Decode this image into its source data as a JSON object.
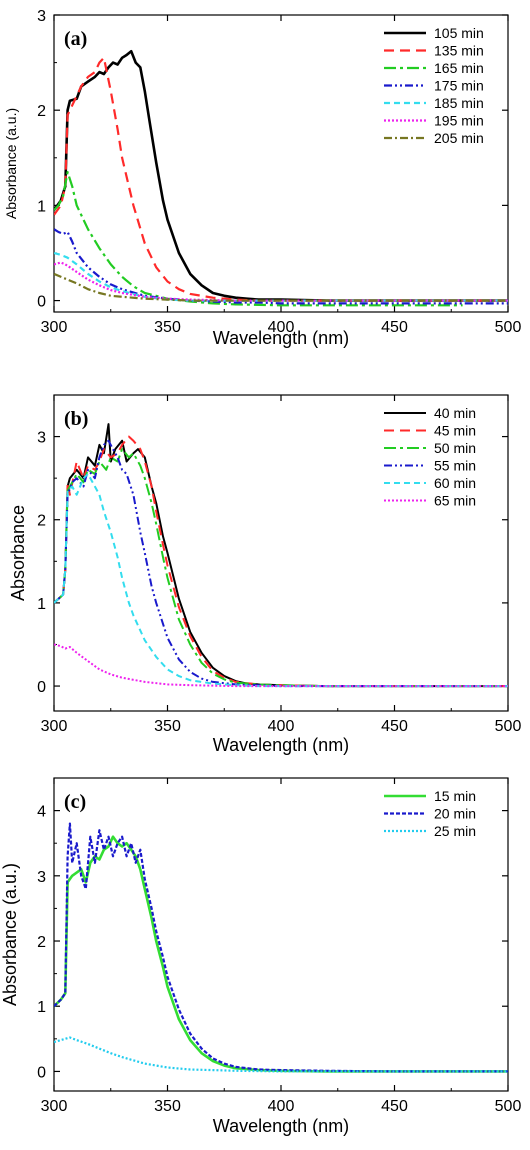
{
  "chart_data": [
    {
      "type": "line",
      "panel_label": "(a)",
      "xlabel": "Wavelength (nm)",
      "ylabel": "Absorbance (a.u.)",
      "xlim": [
        300,
        500
      ],
      "ylim": [
        -0.12,
        3
      ],
      "xticks": [
        300,
        350,
        400,
        450,
        500
      ],
      "yticks": [
        0,
        1,
        2,
        3
      ],
      "legend": "top-right",
      "series": [
        {
          "name": "105 min",
          "color": "#000000",
          "dash": "solid",
          "width": 2.6,
          "x": [
            300,
            303,
            305,
            306,
            307,
            310,
            312,
            315,
            318,
            320,
            322,
            324,
            326,
            328,
            330,
            332,
            334,
            336,
            338,
            340,
            342,
            345,
            348,
            350,
            355,
            360,
            365,
            370,
            375,
            380,
            385,
            390,
            400,
            420,
            450,
            480,
            500
          ],
          "y": [
            0.95,
            1.05,
            1.2,
            2.0,
            2.1,
            2.12,
            2.25,
            2.3,
            2.35,
            2.4,
            2.38,
            2.45,
            2.5,
            2.48,
            2.55,
            2.58,
            2.62,
            2.5,
            2.45,
            2.2,
            1.9,
            1.45,
            1.05,
            0.85,
            0.5,
            0.28,
            0.16,
            0.08,
            0.05,
            0.03,
            0.02,
            0.01,
            0.01,
            0.0,
            0.0,
            0.0,
            0.0
          ]
        },
        {
          "name": "135 min",
          "color": "#ff2a2a",
          "dash": "10,6",
          "width": 2.2,
          "x": [
            300,
            303,
            305,
            306,
            308,
            310,
            312,
            315,
            318,
            320,
            322,
            325,
            328,
            330,
            335,
            340,
            345,
            350,
            355,
            360,
            370,
            380,
            390,
            400,
            450,
            500
          ],
          "y": [
            0.9,
            1.0,
            1.2,
            1.95,
            2.05,
            2.15,
            2.25,
            2.35,
            2.4,
            2.5,
            2.55,
            2.2,
            1.8,
            1.5,
            1.0,
            0.6,
            0.35,
            0.2,
            0.12,
            0.07,
            0.03,
            0.01,
            0.0,
            0.0,
            0.0,
            0.0
          ]
        },
        {
          "name": "165 min",
          "color": "#22cc22",
          "dash": "12,4,3,4",
          "width": 2.2,
          "x": [
            300,
            302,
            304,
            306,
            308,
            310,
            315,
            320,
            325,
            330,
            335,
            340,
            350,
            360,
            370,
            380,
            400,
            420,
            450,
            480
          ],
          "y": [
            0.95,
            1.0,
            1.1,
            1.35,
            1.2,
            1.0,
            0.75,
            0.55,
            0.38,
            0.25,
            0.15,
            0.08,
            0.02,
            -0.01,
            -0.03,
            -0.04,
            -0.05,
            -0.05,
            -0.05,
            -0.05
          ]
        },
        {
          "name": "175 min",
          "color": "#1a1acc",
          "dash": "8,3,2,3,2,3",
          "width": 2.2,
          "x": [
            300,
            302,
            304,
            306,
            308,
            310,
            315,
            320,
            325,
            330,
            340,
            350,
            360,
            370,
            380,
            390,
            400,
            420,
            450,
            480,
            500
          ],
          "y": [
            0.75,
            0.72,
            0.7,
            0.72,
            0.62,
            0.5,
            0.35,
            0.25,
            0.17,
            0.12,
            0.05,
            0.02,
            0.0,
            -0.01,
            -0.02,
            -0.02,
            -0.03,
            -0.03,
            -0.03,
            -0.03,
            -0.03
          ]
        },
        {
          "name": "185 min",
          "color": "#33ddee",
          "dash": "6,4",
          "width": 2.2,
          "x": [
            300,
            303,
            306,
            310,
            315,
            320,
            325,
            330,
            340,
            350,
            360,
            380,
            400,
            450,
            500
          ],
          "y": [
            0.5,
            0.48,
            0.45,
            0.38,
            0.28,
            0.2,
            0.14,
            0.1,
            0.04,
            0.01,
            0.0,
            0.0,
            0.0,
            0.0,
            0.0
          ]
        },
        {
          "name": "195 min",
          "color": "#ee22ee",
          "dash": "2,2",
          "width": 2.2,
          "x": [
            300,
            303,
            305,
            307,
            310,
            315,
            320,
            325,
            330,
            340,
            350,
            360,
            380,
            400,
            450,
            500
          ],
          "y": [
            0.38,
            0.4,
            0.38,
            0.35,
            0.3,
            0.22,
            0.16,
            0.11,
            0.08,
            0.04,
            0.02,
            0.01,
            0.0,
            0.0,
            0.0,
            0.0
          ]
        },
        {
          "name": "205 min",
          "color": "#777722",
          "dash": "8,3,2,3",
          "width": 2.2,
          "x": [
            300,
            303,
            306,
            310,
            315,
            320,
            325,
            330,
            340,
            350,
            360,
            380,
            400,
            450,
            500
          ],
          "y": [
            0.28,
            0.25,
            0.22,
            0.18,
            0.12,
            0.08,
            0.05,
            0.04,
            0.02,
            0.01,
            0.0,
            0.0,
            0.0,
            0.0,
            0.0
          ]
        }
      ]
    },
    {
      "type": "line",
      "panel_label": "(b)",
      "xlabel": "Wavelength (nm)",
      "ylabel": "Absorbance",
      "xlim": [
        300,
        500
      ],
      "ylim": [
        -0.3,
        3.5
      ],
      "xticks": [
        300,
        350,
        400,
        450,
        500
      ],
      "yticks": [
        0,
        1,
        2,
        3
      ],
      "legend": "top-right",
      "series": [
        {
          "name": "40 min",
          "color": "#000000",
          "dash": "solid",
          "width": 2.0,
          "x": [
            300,
            304,
            305,
            306,
            307,
            310,
            313,
            315,
            318,
            320,
            322,
            324,
            325,
            327,
            330,
            332,
            335,
            337,
            340,
            343,
            345,
            348,
            350,
            355,
            360,
            365,
            370,
            375,
            380,
            385,
            390,
            400,
            420,
            450,
            480,
            500
          ],
          "y": [
            1.0,
            1.1,
            1.4,
            2.4,
            2.5,
            2.6,
            2.5,
            2.75,
            2.65,
            2.9,
            2.8,
            3.15,
            2.7,
            2.85,
            2.95,
            2.7,
            2.8,
            2.85,
            2.75,
            2.4,
            2.2,
            1.8,
            1.6,
            1.05,
            0.65,
            0.4,
            0.22,
            0.12,
            0.06,
            0.03,
            0.02,
            0.01,
            0.0,
            0.0,
            0.0,
            0.0
          ]
        },
        {
          "name": "45 min",
          "color": "#ff2a2a",
          "dash": "10,6",
          "width": 2.0,
          "x": [
            300,
            304,
            305,
            306,
            307,
            310,
            313,
            315,
            318,
            320,
            322,
            325,
            328,
            330,
            333,
            335,
            338,
            340,
            343,
            345,
            348,
            350,
            355,
            360,
            365,
            370,
            375,
            380,
            390,
            400,
            420,
            450,
            500
          ],
          "y": [
            1.0,
            1.1,
            1.4,
            2.45,
            2.3,
            2.7,
            2.5,
            2.65,
            2.6,
            2.7,
            2.85,
            2.75,
            2.8,
            2.9,
            3.0,
            2.95,
            2.85,
            2.7,
            2.4,
            2.1,
            1.7,
            1.45,
            0.95,
            0.6,
            0.35,
            0.18,
            0.1,
            0.05,
            0.02,
            0.01,
            0.0,
            0.0,
            0.0
          ]
        },
        {
          "name": "50 min",
          "color": "#22cc22",
          "dash": "12,4,3,4",
          "width": 2.0,
          "x": [
            300,
            304,
            305,
            306,
            308,
            310,
            313,
            315,
            318,
            320,
            323,
            325,
            328,
            330,
            333,
            335,
            338,
            340,
            343,
            345,
            348,
            350,
            355,
            360,
            365,
            370,
            375,
            380,
            390,
            400,
            420,
            450,
            500
          ],
          "y": [
            1.0,
            1.1,
            1.4,
            2.35,
            2.45,
            2.55,
            2.45,
            2.6,
            2.55,
            2.7,
            2.6,
            2.75,
            2.7,
            2.85,
            2.75,
            2.8,
            2.65,
            2.5,
            2.2,
            1.95,
            1.55,
            1.3,
            0.8,
            0.5,
            0.28,
            0.15,
            0.08,
            0.04,
            0.02,
            0.01,
            0.0,
            0.0,
            0.0
          ]
        },
        {
          "name": "55 min",
          "color": "#1a1acc",
          "dash": "8,3,2,3,2,3",
          "width": 2.0,
          "x": [
            300,
            304,
            305,
            306,
            308,
            310,
            313,
            315,
            318,
            320,
            322,
            324,
            326,
            328,
            330,
            332,
            335,
            338,
            340,
            343,
            345,
            350,
            355,
            360,
            365,
            370,
            380,
            390,
            400,
            420,
            450,
            500
          ],
          "y": [
            1.0,
            1.1,
            1.4,
            2.3,
            2.45,
            2.5,
            2.4,
            2.6,
            2.5,
            2.75,
            2.9,
            2.95,
            2.85,
            2.75,
            2.6,
            2.55,
            2.3,
            1.85,
            1.6,
            1.2,
            1.0,
            0.58,
            0.32,
            0.17,
            0.09,
            0.05,
            0.02,
            0.01,
            0.0,
            0.0,
            0.0,
            0.0
          ]
        },
        {
          "name": "60 min",
          "color": "#33ddee",
          "dash": "6,4",
          "width": 2.0,
          "x": [
            300,
            304,
            305,
            306,
            308,
            310,
            313,
            315,
            318,
            320,
            322,
            325,
            328,
            330,
            333,
            335,
            340,
            345,
            350,
            355,
            360,
            370,
            380,
            390,
            400,
            450,
            500
          ],
          "y": [
            1.0,
            1.1,
            1.4,
            2.35,
            2.4,
            2.3,
            2.5,
            2.55,
            2.4,
            2.3,
            2.1,
            1.85,
            1.55,
            1.3,
            1.0,
            0.85,
            0.55,
            0.35,
            0.2,
            0.12,
            0.07,
            0.03,
            0.01,
            0.0,
            0.0,
            0.0,
            0.0
          ]
        },
        {
          "name": "65 min",
          "color": "#ee22ee",
          "dash": "2,2",
          "width": 2.0,
          "x": [
            300,
            303,
            305,
            307,
            310,
            315,
            320,
            325,
            330,
            340,
            350,
            360,
            380,
            400,
            450,
            500
          ],
          "y": [
            0.5,
            0.48,
            0.45,
            0.47,
            0.4,
            0.3,
            0.2,
            0.14,
            0.1,
            0.05,
            0.02,
            0.01,
            0.0,
            0.0,
            0.0,
            0.0
          ]
        }
      ]
    },
    {
      "type": "line",
      "panel_label": "(c)",
      "xlabel": "Wavelength (nm)",
      "ylabel": "Absorbance (a.u.)",
      "xlim": [
        300,
        500
      ],
      "ylim": [
        -0.3,
        4.5
      ],
      "xticks": [
        300,
        350,
        400,
        450,
        500
      ],
      "yticks": [
        0,
        1,
        2,
        3,
        4
      ],
      "legend": "top-right",
      "series": [
        {
          "name": "15 min",
          "color": "#33dd33",
          "dash": "solid",
          "width": 2.6,
          "x": [
            300,
            303,
            305,
            306,
            308,
            310,
            312,
            314,
            316,
            318,
            320,
            322,
            324,
            326,
            328,
            330,
            332,
            334,
            336,
            338,
            340,
            343,
            345,
            348,
            350,
            355,
            360,
            365,
            370,
            375,
            380,
            390,
            400,
            420,
            450,
            500
          ],
          "y": [
            1.0,
            1.1,
            1.2,
            2.9,
            3.0,
            3.05,
            3.1,
            2.9,
            3.2,
            3.3,
            3.25,
            3.4,
            3.45,
            3.6,
            3.5,
            3.45,
            3.5,
            3.4,
            3.3,
            3.1,
            2.8,
            2.35,
            2.0,
            1.6,
            1.3,
            0.8,
            0.48,
            0.28,
            0.16,
            0.09,
            0.05,
            0.02,
            0.01,
            0.0,
            0.0,
            0.0
          ]
        },
        {
          "name": "20 min",
          "color": "#1a1acc",
          "dash": "4,2",
          "width": 2.2,
          "x": [
            300,
            303,
            305,
            306,
            307,
            308,
            310,
            312,
            314,
            316,
            318,
            320,
            322,
            324,
            326,
            328,
            330,
            332,
            334,
            336,
            338,
            340,
            343,
            345,
            348,
            350,
            355,
            360,
            365,
            370,
            375,
            380,
            390,
            400,
            420,
            450,
            500
          ],
          "y": [
            1.0,
            1.1,
            1.2,
            3.3,
            3.8,
            3.2,
            3.5,
            3.0,
            2.8,
            3.6,
            3.2,
            3.7,
            3.4,
            3.6,
            3.3,
            3.5,
            3.6,
            3.3,
            3.5,
            3.2,
            3.4,
            2.95,
            2.5,
            2.15,
            1.75,
            1.45,
            0.95,
            0.58,
            0.35,
            0.2,
            0.12,
            0.07,
            0.03,
            0.02,
            0.01,
            0.0,
            0.0
          ]
        },
        {
          "name": "25 min",
          "color": "#22ccee",
          "dash": "2,2",
          "width": 2.2,
          "x": [
            300,
            303,
            305,
            307,
            310,
            315,
            320,
            325,
            330,
            340,
            350,
            360,
            370,
            380,
            400,
            450,
            500
          ],
          "y": [
            0.45,
            0.48,
            0.5,
            0.52,
            0.48,
            0.42,
            0.35,
            0.28,
            0.22,
            0.12,
            0.06,
            0.03,
            0.02,
            0.01,
            0.0,
            0.0,
            0.0
          ]
        }
      ]
    }
  ]
}
